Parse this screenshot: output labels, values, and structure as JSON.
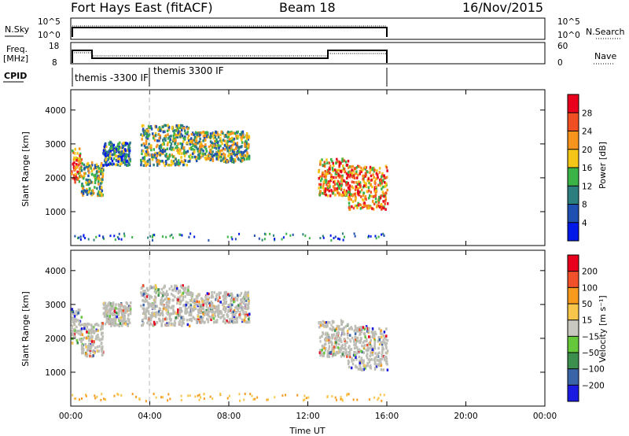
{
  "header": {
    "station": "Fort Hays East (fitACF)",
    "beam": "Beam 18",
    "date": "16/Nov/2015"
  },
  "params": {
    "nsky_label": "N.Sky",
    "nsearch_label": "N.Search",
    "nsky_ticks": [
      "10^5",
      "10^0"
    ],
    "freq_label": "Freq.",
    "freq_unit": "[MHz]",
    "freq_ticks": [
      "18",
      "8"
    ],
    "nave_label": "Nave",
    "nave_ticks": [
      "60",
      "0"
    ],
    "cpid_label": "CPID",
    "cpid_modes": [
      "themis -3300 IF",
      "themis 3300 IF"
    ]
  },
  "chart_data": [
    {
      "type": "heatmap",
      "name": "power",
      "ylabel": "Slant Range [km]",
      "xlabel": "",
      "x_ticks": [
        "00:00",
        "04:00",
        "08:00",
        "12:00",
        "16:00",
        "20:00",
        "00:00"
      ],
      "x_range_hours": [
        0,
        24
      ],
      "ylim": [
        0,
        4600
      ],
      "y_ticks": [
        1000,
        2000,
        3000,
        4000
      ],
      "colorbar": {
        "label": "Power [dB]",
        "ticks": [
          "4",
          "8",
          "12",
          "16",
          "20",
          "24",
          "28"
        ],
        "range": [
          0,
          32
        ],
        "colors": [
          "#0018e8",
          "#1f4fb0",
          "#2d7f7f",
          "#3cb347",
          "#f5c518",
          "#f7941d",
          "#f04e23",
          "#e8001c"
        ]
      },
      "bands": [
        {
          "t0": 0.0,
          "t1": 0.5,
          "r0": 1900,
          "r1": 2900,
          "level": "high"
        },
        {
          "t0": 0.5,
          "t1": 1.6,
          "r0": 1500,
          "r1": 2500,
          "level": "mid"
        },
        {
          "t0": 1.6,
          "t1": 3.0,
          "r0": 2400,
          "r1": 3100,
          "level": "low"
        },
        {
          "t0": 3.5,
          "t1": 6.0,
          "r0": 2400,
          "r1": 3600,
          "level": "mid"
        },
        {
          "t0": 6.0,
          "t1": 9.0,
          "r0": 2500,
          "r1": 3400,
          "level": "mid"
        },
        {
          "t0": 12.5,
          "t1": 14.0,
          "r0": 1500,
          "r1": 2600,
          "level": "high"
        },
        {
          "t0": 14.0,
          "t1": 16.0,
          "r0": 1100,
          "r1": 2400,
          "level": "high"
        }
      ]
    },
    {
      "type": "heatmap",
      "name": "velocity",
      "ylabel": "Slant Range [km]",
      "xlabel": "Time UT",
      "x_ticks": [
        "00:00",
        "04:00",
        "08:00",
        "12:00",
        "16:00",
        "20:00",
        "00:00"
      ],
      "x_range_hours": [
        0,
        24
      ],
      "ylim": [
        0,
        4600
      ],
      "y_ticks": [
        1000,
        2000,
        3000,
        4000
      ],
      "colorbar": {
        "label": "Velocity [m s⁻¹]",
        "ticks": [
          "200",
          "100",
          "50",
          "15",
          "−15",
          "−50",
          "−100",
          "−200"
        ],
        "colors": [
          "#1a1ae0",
          "#3a64a8",
          "#3c8f4c",
          "#64c83a",
          "#c8c8c0",
          "#f7c64b",
          "#f79a1d",
          "#f0502a",
          "#e8001c"
        ]
      },
      "ground_scatter_color": "#bdbdb5"
    }
  ]
}
